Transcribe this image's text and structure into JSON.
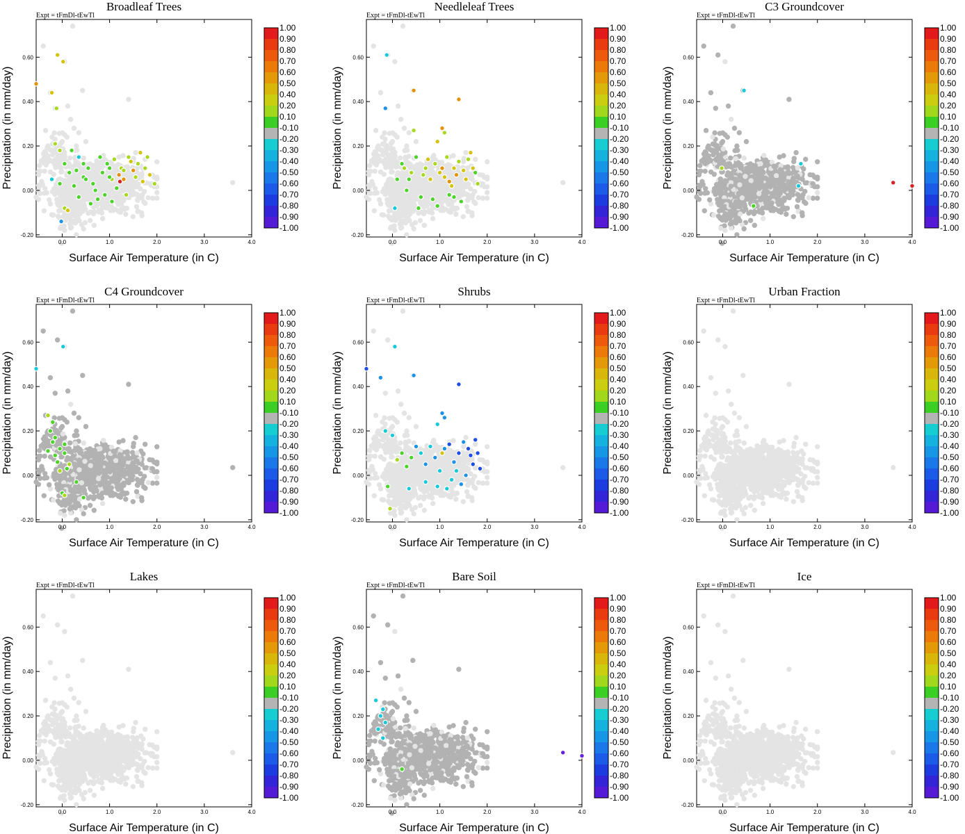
{
  "chart_data": {
    "type": "scatter",
    "layout": "3x3 grid",
    "shared": {
      "expt_label": "Expt = tFmDl-tEwTl",
      "xlabel": "Surface Air Temperature (in C)",
      "ylabel": "Precipitation (in mm/day)",
      "xlim": [
        -0.55,
        4.0
      ],
      "ylim": [
        -0.21,
        0.77
      ],
      "x_ticks": [
        "0.0",
        "1.0",
        "2.0",
        "3.0",
        "4.0"
      ],
      "x_tick_values": [
        0,
        1,
        2,
        3,
        4
      ],
      "y_ticks": [
        "-0.20",
        "0.00",
        "0.20",
        "0.40",
        "0.60"
      ],
      "y_tick_values": [
        -0.2,
        0,
        0.2,
        0.4,
        0.6
      ],
      "colorbar": {
        "labels": [
          "1.00",
          "0.90",
          "0.80",
          "0.70",
          "0.60",
          "0.50",
          "0.40",
          "0.20",
          "0.10",
          "-0.10",
          "-0.20",
          "-0.30",
          "-0.40",
          "-0.50",
          "-0.60",
          "-0.70",
          "-0.80",
          "-0.90",
          "-1.00"
        ],
        "colors": [
          "#e31a1c",
          "#ea3a10",
          "#ed5a0c",
          "#eb7a08",
          "#e49a08",
          "#d8b70a",
          "#cbcd0f",
          "#a2d81c",
          "#3bcf26",
          "#b4b4b4",
          "#16cdd2",
          "#15b2e0",
          "#1896e6",
          "#1a78e8",
          "#1c5ae8",
          "#1c3ce0",
          "#3424d8",
          "#541ad6",
          "#7a1fe6"
        ]
      },
      "class_colors": {
        "light": "#e4e4e4",
        "gray": "#b2b2b2",
        "g": "#4ed22c",
        "yg": "#a8d820",
        "y": "#d4c410",
        "o": "#e2920c",
        "r": "#d52222",
        "c": "#19c9d8",
        "b": "#1e92e4",
        "db": "#1f4ee2",
        "p": "#6622d8"
      }
    },
    "background_points": [
      [
        0.22,
        0.74
      ],
      [
        -0.4,
        0.65
      ],
      [
        -0.1,
        0.61
      ],
      [
        0.05,
        0.58
      ],
      [
        -0.6,
        0.48
      ],
      [
        -0.25,
        0.44
      ],
      [
        -0.15,
        0.37
      ],
      [
        0.43,
        0.45
      ],
      [
        1.4,
        0.41
      ],
      [
        0.12,
        0.38
      ],
      [
        0.18,
        0.32
      ],
      [
        0.25,
        0.28
      ],
      [
        -0.35,
        0.27
      ],
      [
        0.35,
        0.26
      ],
      [
        0.5,
        0.22
      ],
      [
        3.6,
        0.035
      ],
      [
        -0.55,
        -0.03
      ],
      [
        0.05,
        -0.18
      ],
      [
        0.3,
        -0.2
      ],
      [
        0.15,
        -0.12
      ],
      [
        1.9,
        0.03
      ],
      [
        1.75,
        0.14
      ],
      [
        1.55,
        0.17
      ],
      [
        1.2,
        0.15
      ],
      [
        0.8,
        0.12
      ],
      [
        -0.3,
        0.2
      ],
      [
        -0.2,
        0.16
      ],
      [
        0.0,
        0.22
      ],
      [
        0.1,
        0.24
      ],
      [
        0.3,
        0.2
      ]
    ],
    "panels": [
      {
        "title": "Broadleaf Trees",
        "points": [
          [
            "o",
            -0.55,
            0.48
          ],
          [
            "y",
            -0.22,
            0.44
          ],
          [
            "yg",
            -0.12,
            0.37
          ],
          [
            "y",
            -0.1,
            0.61
          ],
          [
            "y",
            0.02,
            0.58
          ],
          [
            "yg",
            -0.15,
            0.21
          ],
          [
            "yg",
            -0.05,
            0.18
          ],
          [
            "c",
            -0.22,
            0.05
          ],
          [
            "b",
            -0.02,
            -0.14
          ],
          [
            "yg",
            0.05,
            -0.08
          ],
          [
            "y",
            0.12,
            -0.09
          ],
          [
            "c",
            0.35,
            0.15
          ],
          [
            "g",
            0.05,
            0.12
          ],
          [
            "g",
            0.15,
            0.08
          ],
          [
            "g",
            0.25,
            0.02
          ],
          [
            "g",
            -0.05,
            0.03
          ],
          [
            "g",
            0.35,
            -0.03
          ],
          [
            "g",
            0.45,
            0.06
          ],
          [
            "g",
            0.55,
            0.1
          ],
          [
            "g",
            0.65,
            0.03
          ],
          [
            "g",
            0.75,
            -0.04
          ],
          [
            "g",
            0.85,
            0.08
          ],
          [
            "g",
            0.95,
            0.12
          ],
          [
            "yg",
            1.05,
            0.05
          ],
          [
            "g",
            1.15,
            0.01
          ],
          [
            "yg",
            1.25,
            0.1
          ],
          [
            "yg",
            1.35,
            -0.02
          ],
          [
            "y",
            1.45,
            0.13
          ],
          [
            "yg",
            1.55,
            0.06
          ],
          [
            "y",
            1.65,
            0.17
          ],
          [
            "yg",
            1.75,
            0.1
          ],
          [
            "y",
            1.85,
            0.07
          ],
          [
            "yg",
            1.95,
            0.03
          ],
          [
            "o",
            1.2,
            0.07
          ],
          [
            "r",
            1.22,
            0.04
          ],
          [
            "o",
            1.3,
            0.05
          ],
          [
            "o",
            1.5,
            0.09
          ],
          [
            "g",
            0.6,
            -0.06
          ],
          [
            "g",
            0.7,
            0.0
          ],
          [
            "g",
            0.9,
            -0.02
          ],
          [
            "g",
            1.0,
            0.1
          ],
          [
            "g",
            0.2,
            0.18
          ],
          [
            "g",
            0.45,
            0.12
          ],
          [
            "g",
            0.8,
            0.15
          ],
          [
            "yg",
            1.1,
            0.14
          ],
          [
            "yg",
            1.4,
            0.15
          ],
          [
            "yg",
            1.6,
            0.12
          ],
          [
            "y",
            1.7,
            0.04
          ],
          [
            "yg",
            1.8,
            0.15
          ],
          [
            "g",
            0.3,
            0.09
          ],
          [
            "g",
            0.5,
            0.05
          ],
          [
            "g",
            1.05,
            -0.05
          ],
          [
            "yg",
            1.3,
            0.09
          ],
          [
            "g",
            1.0,
            0.06
          ]
        ]
      },
      {
        "title": "Needleleaf Trees",
        "points": [
          [
            "c",
            -0.12,
            0.61
          ],
          [
            "b",
            -0.15,
            0.37
          ],
          [
            "o",
            0.45,
            0.45
          ],
          [
            "o",
            1.4,
            0.41
          ],
          [
            "yg",
            0.45,
            0.27
          ],
          [
            "o",
            1.05,
            0.28
          ],
          [
            "y",
            0.95,
            0.22
          ],
          [
            "yg",
            1.1,
            0.26
          ],
          [
            "c",
            0.05,
            -0.08
          ],
          [
            "g",
            0.1,
            0.05
          ],
          [
            "g",
            0.2,
            0.12
          ],
          [
            "g",
            0.3,
            0.0
          ],
          [
            "yg",
            0.4,
            0.08
          ],
          [
            "g",
            0.5,
            0.15
          ],
          [
            "g",
            0.6,
            -0.03
          ],
          [
            "yg",
            0.7,
            0.1
          ],
          [
            "y",
            0.8,
            0.05
          ],
          [
            "yg",
            0.9,
            0.12
          ],
          [
            "y",
            1.0,
            0.08
          ],
          [
            "o",
            1.05,
            0.1
          ],
          [
            "y",
            1.1,
            0.06
          ],
          [
            "o",
            1.2,
            0.04
          ],
          [
            "y",
            1.3,
            0.1
          ],
          [
            "o",
            1.35,
            0.07
          ],
          [
            "yg",
            1.4,
            0.13
          ],
          [
            "y",
            1.5,
            0.09
          ],
          [
            "yg",
            1.6,
            0.14
          ],
          [
            "y",
            1.7,
            0.1
          ],
          [
            "yg",
            1.8,
            0.03
          ],
          [
            "y",
            1.65,
            0.17
          ],
          [
            "g",
            1.45,
            -0.05
          ],
          [
            "g",
            1.2,
            -0.02
          ],
          [
            "g",
            0.85,
            -0.04
          ],
          [
            "g",
            0.55,
            -0.08
          ],
          [
            "g",
            0.35,
            0.05
          ],
          [
            "y",
            0.75,
            0.14
          ],
          [
            "yg",
            1.15,
            0.15
          ],
          [
            "y",
            1.55,
            0.05
          ],
          [
            "g",
            0.95,
            -0.07
          ],
          [
            "yg",
            0.25,
            0.1
          ],
          [
            "yg",
            0.65,
            0.07
          ],
          [
            "g",
            1.3,
            -0.03
          ],
          [
            "g",
            1.75,
            0.08
          ],
          [
            "y",
            1.25,
            0.02
          ]
        ]
      },
      {
        "title": "C3 Groundcover",
        "points": [
          [
            "c",
            0.45,
            0.45
          ],
          [
            "c",
            1.65,
            0.12
          ],
          [
            "c",
            1.6,
            0.02
          ],
          [
            "g",
            0.65,
            -0.07
          ],
          [
            "yg",
            -0.02,
            0.1
          ],
          [
            "r",
            3.6,
            0.035
          ],
          [
            "r",
            4.0,
            0.02
          ]
        ]
      },
      {
        "title": "C4 Groundcover",
        "points": [
          [
            "c",
            -0.55,
            0.48
          ],
          [
            "c",
            0.02,
            0.58
          ],
          [
            "yg",
            -0.3,
            0.27
          ],
          [
            "g",
            -0.2,
            0.24
          ],
          [
            "g",
            -0.25,
            0.2
          ],
          [
            "g",
            -0.15,
            0.17
          ],
          [
            "g",
            -0.05,
            0.12
          ],
          [
            "g",
            0.05,
            0.1
          ],
          [
            "g",
            -0.3,
            0.11
          ],
          [
            "g",
            -0.1,
            0.06
          ],
          [
            "g",
            0.1,
            0.03
          ],
          [
            "yg",
            0.15,
            0.05
          ],
          [
            "g",
            -0.2,
            0.15
          ],
          [
            "yg",
            -0.05,
            0.02
          ],
          [
            "g",
            0.05,
            0.14
          ],
          [
            "g",
            0.3,
            -0.03
          ],
          [
            "g",
            0.0,
            -0.08
          ],
          [
            "yg",
            0.05,
            -0.09
          ],
          [
            "g",
            0.45,
            -0.1
          ],
          [
            "g",
            -0.15,
            0.09
          ]
        ]
      },
      {
        "title": "Shrubs",
        "points": [
          [
            "db",
            -0.55,
            0.48
          ],
          [
            "b",
            -0.25,
            0.44
          ],
          [
            "c",
            0.05,
            0.58
          ],
          [
            "b",
            0.45,
            0.45
          ],
          [
            "db",
            1.4,
            0.41
          ],
          [
            "b",
            1.05,
            0.28
          ],
          [
            "b",
            1.1,
            0.26
          ],
          [
            "c",
            0.95,
            0.23
          ],
          [
            "c",
            -0.15,
            0.2
          ],
          [
            "c",
            0.0,
            0.18
          ],
          [
            "g",
            0.2,
            0.1
          ],
          [
            "g",
            0.3,
            0.04
          ],
          [
            "yg",
            0.1,
            0.07
          ],
          [
            "g",
            -0.1,
            -0.05
          ],
          [
            "yg",
            -0.05,
            -0.15
          ],
          [
            "b",
            0.5,
            0.13
          ],
          [
            "c",
            0.6,
            0.1
          ],
          [
            "b",
            0.7,
            0.05
          ],
          [
            "c",
            0.8,
            0.13
          ],
          [
            "b",
            0.9,
            0.08
          ],
          [
            "c",
            1.0,
            0.02
          ],
          [
            "b",
            1.1,
            0.12
          ],
          [
            "db",
            1.2,
            0.14
          ],
          [
            "b",
            1.3,
            0.06
          ],
          [
            "db",
            1.4,
            0.1
          ],
          [
            "b",
            1.5,
            0.15
          ],
          [
            "db",
            1.6,
            0.12
          ],
          [
            "db",
            1.7,
            0.05
          ],
          [
            "db",
            1.8,
            0.1
          ],
          [
            "db",
            1.85,
            0.03
          ],
          [
            "db",
            1.75,
            0.16
          ],
          [
            "b",
            1.55,
            0.0
          ],
          [
            "c",
            1.25,
            -0.02
          ],
          [
            "c",
            0.95,
            -0.05
          ],
          [
            "b",
            1.45,
            -0.04
          ],
          [
            "db",
            1.65,
            0.09
          ],
          [
            "c",
            0.35,
            -0.06
          ],
          [
            "c",
            0.7,
            -0.03
          ],
          [
            "g",
            0.4,
            0.08
          ],
          [
            "c",
            1.35,
            0.02
          ],
          [
            "y",
            1.05,
            0.1
          ],
          [
            "c",
            1.15,
            -0.06
          ]
        ]
      },
      {
        "title": "Urban Fraction",
        "points": []
      },
      {
        "title": "Lakes",
        "points": []
      },
      {
        "title": "Bare Soil",
        "points": [
          [
            "c",
            -0.35,
            0.27
          ],
          [
            "c",
            -0.2,
            0.23
          ],
          [
            "c",
            -0.25,
            0.2
          ],
          [
            "c",
            -0.3,
            0.14
          ],
          [
            "c",
            -0.2,
            0.1
          ],
          [
            "c",
            -0.15,
            0.17
          ],
          [
            "g",
            0.2,
            -0.04
          ],
          [
            "p",
            3.6,
            0.035
          ],
          [
            "p",
            4.0,
            0.02
          ]
        ]
      },
      {
        "title": "Ice",
        "points": []
      }
    ]
  }
}
